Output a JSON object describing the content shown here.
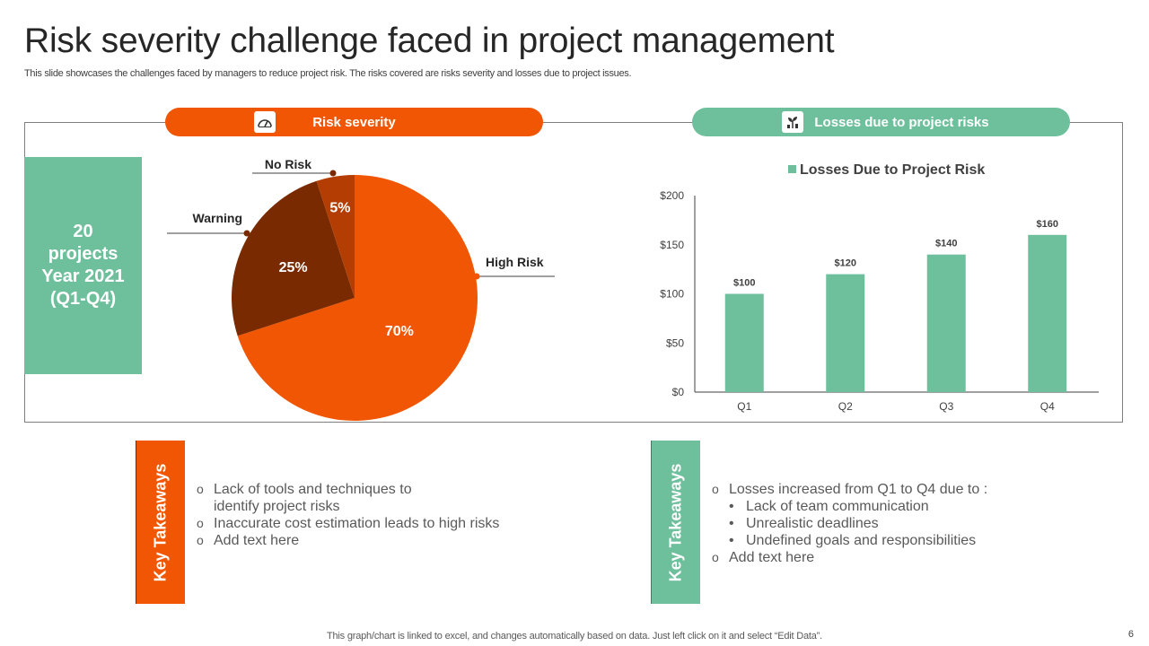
{
  "page": {
    "title": "Risk severity challenge faced in project management",
    "subtitle": "This slide showcases the challenges faced by managers to reduce project risk. The risks covered are risks severity and losses due to project issues.",
    "footer": "This graph/chart is linked to excel,  and changes automatically based on data. Just left click on it and select “Edit Data”.",
    "page_number": "6"
  },
  "colors": {
    "orange": "#f05603",
    "green": "#6ebf9c",
    "dark_brown": "#7a2a00",
    "brown": "#b33d02"
  },
  "left_panel": {
    "header": "Risk severity",
    "header_icon": "gauge-icon",
    "projects": {
      "line1": "20",
      "line2": "projects",
      "line3": "Year 2021",
      "line4": "(Q1-Q4)"
    }
  },
  "right_panel": {
    "header": "Losses  due to project risks",
    "header_icon": "money-plant-icon"
  },
  "chart_data": [
    {
      "type": "pie",
      "title": "",
      "labels": [
        "High Risk",
        "Warning",
        "No Risk"
      ],
      "values": [
        70,
        25,
        5
      ],
      "value_labels": [
        "70%",
        "25%",
        "5%"
      ],
      "colors": [
        "#f05603",
        "#7a2a00",
        "#b33d02"
      ]
    },
    {
      "type": "bar",
      "title": "Losses Due to Project Risk",
      "legend": "Losses Due to Project Risk",
      "categories": [
        "Q1",
        "Q2",
        "Q3",
        "Q4"
      ],
      "values": [
        100,
        120,
        140,
        160
      ],
      "value_labels": [
        "$100",
        "$120",
        "$140",
        "$160"
      ],
      "y_ticks": [
        "$0",
        "$50",
        "$100",
        "$150",
        "$200"
      ],
      "ylim": [
        0,
        200
      ],
      "xlabel": "",
      "ylabel": "",
      "color": "#6ebf9c"
    }
  ],
  "takeaways_left": {
    "tab_label": "Key Takeaways",
    "items": [
      {
        "line1": "Lack of tools and techniques to",
        "line2": "identify project risks"
      },
      {
        "line1": "Inaccurate  cost estimation leads to high risks"
      },
      {
        "line1": "Add text here"
      }
    ]
  },
  "takeaways_right": {
    "tab_label": "Key Takeaways",
    "intro": "Losses increased from Q1 to Q4 due to :",
    "sub_items": [
      "Lack of team communication",
      "Unrealistic deadlines",
      "Undefined goals and responsibilities"
    ],
    "last": "Add text here"
  }
}
